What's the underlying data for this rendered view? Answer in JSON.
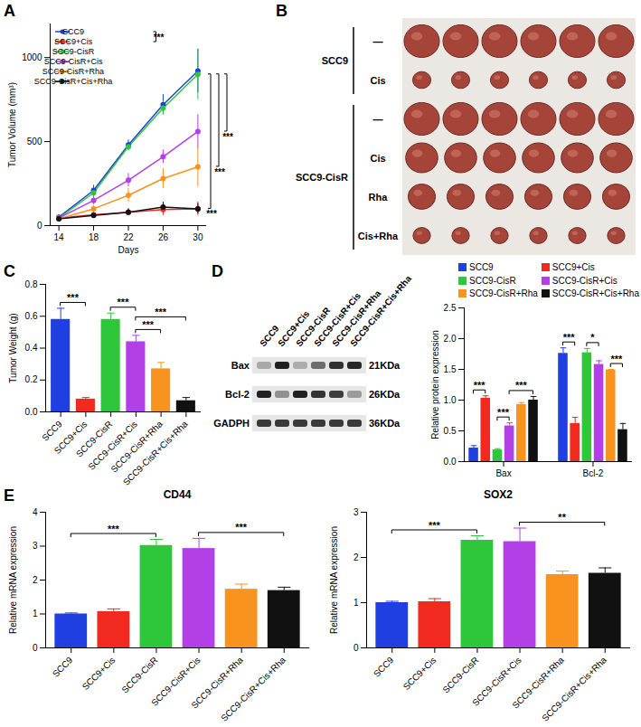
{
  "chart_data": [
    {
      "panel": "A",
      "type": "line",
      "x": [
        14,
        18,
        22,
        26,
        30
      ],
      "xlim": [
        13,
        31
      ],
      "xticks": [
        14,
        18,
        22,
        26,
        30
      ],
      "ylim": [
        0,
        1200
      ],
      "yticks": [
        0,
        500,
        1000
      ],
      "x_label": "Days",
      "y_label": "Tumor Volume (mm³)",
      "legend": "top-left",
      "marker": "circle",
      "series": [
        {
          "name": "SCC9",
          "color": "#1f3fe0",
          "values": [
            50,
            210,
            480,
            720,
            920
          ],
          "errors": [
            15,
            30,
            30,
            60,
            130
          ]
        },
        {
          "name": "SCC9+Cis",
          "color": "#f2291f",
          "values": [
            45,
            65,
            80,
            95,
            100
          ],
          "errors": [
            10,
            15,
            20,
            35,
            40
          ]
        },
        {
          "name": "SCC9-CisR",
          "color": "#2ec73c",
          "values": [
            45,
            195,
            470,
            700,
            900
          ],
          "errors": [
            15,
            25,
            25,
            40,
            150
          ]
        },
        {
          "name": "SCC9-CisR+Cis",
          "color": "#b33fe6",
          "values": [
            45,
            150,
            270,
            410,
            560
          ],
          "errors": [
            10,
            25,
            40,
            40,
            100
          ]
        },
        {
          "name": "SCC9-CisR+Rha",
          "color": "#f7931e",
          "values": [
            40,
            100,
            180,
            280,
            350
          ],
          "errors": [
            10,
            20,
            40,
            60,
            120
          ]
        },
        {
          "name": "SCC9-CisR+Cis+Rha",
          "color": "#111111",
          "values": [
            40,
            60,
            80,
            110,
            100
          ],
          "errors": [
            10,
            15,
            20,
            30,
            30
          ]
        }
      ],
      "significance": [
        {
          "groups": [
            "SCC9",
            "SCC9+Cis"
          ],
          "label": "***"
        },
        {
          "groups": [
            "SCC9-CisR",
            "SCC9-CisR+Cis"
          ],
          "label": "***"
        },
        {
          "groups": [
            "SCC9-CisR",
            "SCC9-CisR+Rha"
          ],
          "label": "***"
        },
        {
          "groups": [
            "SCC9-CisR",
            "SCC9-CisR+Cis+Rha"
          ],
          "label": "***"
        }
      ]
    },
    {
      "panel": "C",
      "type": "bar",
      "categories": [
        "SCC9",
        "SCC9+Cis",
        "SCC9-CisR",
        "SCC9-CisR+Cis",
        "SCC9-CisR+Rha",
        "SCC9-CisR+Cis+Rha"
      ],
      "values": [
        0.58,
        0.08,
        0.58,
        0.44,
        0.27,
        0.07
      ],
      "errors": [
        0.07,
        0.01,
        0.04,
        0.04,
        0.04,
        0.02
      ],
      "colors": [
        "#1f3fe0",
        "#f2291f",
        "#2ec73c",
        "#b33fe6",
        "#f7931e",
        "#111111"
      ],
      "ylim": [
        0,
        0.8
      ],
      "yticks": [
        {
          "value": 0,
          "label": "0.0"
        },
        0.2,
        0.4,
        0.6,
        0.8
      ],
      "y_label": "Tumor Weight (g)",
      "significance": [
        {
          "groups": [
            "SCC9",
            "SCC9+Cis"
          ],
          "label": "***"
        },
        {
          "groups": [
            "SCC9-CisR",
            "SCC9-CisR+Cis"
          ],
          "label": "***"
        },
        {
          "groups": [
            "SCC9-CisR+Cis",
            "SCC9-CisR+Rha"
          ],
          "label": "***"
        },
        {
          "groups": [
            "SCC9-CisR+Cis",
            "SCC9-CisR+Cis+Rha"
          ],
          "label": "***"
        }
      ]
    },
    {
      "panel": "D",
      "type": "bar",
      "categories": [
        "Bax",
        "Bcl-2"
      ],
      "legend": "top",
      "ylim": [
        0,
        2.5
      ],
      "yticks": [
        {
          "value": 0,
          "label": "0.0"
        },
        0.5,
        {
          "value": 1,
          "label": "1.0"
        },
        1.5,
        {
          "value": 2,
          "label": "2.0"
        },
        2.5
      ],
      "y_label": "Relative protein expression",
      "series": [
        {
          "name": "SCC9",
          "color": "#1f3fe0",
          "values": [
            0.22,
            1.76
          ],
          "errors": [
            0.04,
            0.09
          ]
        },
        {
          "name": "SCC9+Cis",
          "color": "#f2291f",
          "values": [
            1.03,
            0.62
          ],
          "errors": [
            0.04,
            0.1
          ]
        },
        {
          "name": "SCC9-CisR",
          "color": "#2ec73c",
          "values": [
            0.19,
            1.77
          ],
          "errors": [
            0.02,
            0.07
          ]
        },
        {
          "name": "SCC9-CisR+Cis",
          "color": "#b33fe6",
          "values": [
            0.58,
            1.58
          ],
          "errors": [
            0.05,
            0.06
          ]
        },
        {
          "name": "SCC9-CisR+Rha",
          "color": "#f7931e",
          "values": [
            0.93,
            1.49
          ],
          "errors": [
            0.03,
            0.01
          ]
        },
        {
          "name": "SCC9-CisR+Cis+Rha",
          "color": "#111111",
          "values": [
            1.0,
            0.52
          ],
          "errors": [
            0.06,
            0.1
          ]
        }
      ],
      "significance": [
        {
          "category": "Bax",
          "groups": [
            "SCC9",
            "SCC9+Cis"
          ],
          "label": "***"
        },
        {
          "category": "Bax",
          "groups": [
            "SCC9-CisR",
            "SCC9-CisR+Cis"
          ],
          "label": "***"
        },
        {
          "category": "Bax",
          "groups": [
            "SCC9-CisR+Cis",
            "SCC9-CisR+Cis+Rha"
          ],
          "label": "***"
        },
        {
          "category": "Bcl-2",
          "groups": [
            "SCC9",
            "SCC9+Cis"
          ],
          "label": "***"
        },
        {
          "category": "Bcl-2",
          "groups": [
            "SCC9-CisR",
            "SCC9-CisR+Cis"
          ],
          "label": "*"
        },
        {
          "category": "Bcl-2",
          "groups": [
            "SCC9-CisR+Rha",
            "SCC9-CisR+Cis+Rha"
          ],
          "label": "***"
        }
      ]
    },
    {
      "panel": "E",
      "type": "bar",
      "title": "CD44",
      "categories": [
        "SCC9",
        "SCC9+Cis",
        "SCC9-CisR",
        "SCC9-CisR+Cis",
        "SCC9-CisR+Rha",
        "SCC9-CisR+Cis+Rha"
      ],
      "values": [
        1.0,
        1.07,
        3.02,
        2.93,
        1.73,
        1.69
      ],
      "errors": [
        0.03,
        0.08,
        0.18,
        0.3,
        0.15,
        0.1
      ],
      "colors": [
        "#1f3fe0",
        "#f2291f",
        "#2ec73c",
        "#b33fe6",
        "#f7931e",
        "#111111"
      ],
      "ylim": [
        0,
        4
      ],
      "yticks": [
        0,
        1,
        2,
        3,
        4
      ],
      "y_label": "Relative mRNA expression",
      "significance": [
        {
          "groups": [
            "SCC9",
            "SCC9-CisR"
          ],
          "label": "***"
        },
        {
          "groups": [
            "SCC9-CisR+Cis",
            "SCC9-CisR+Cis+Rha"
          ],
          "label": "***"
        }
      ]
    },
    {
      "panel": "E",
      "type": "bar",
      "title": "SOX2",
      "categories": [
        "SCC9",
        "SCC9+Cis",
        "SCC9-CisR",
        "SCC9-CisR+Cis",
        "SCC9-CisR+Rha",
        "SCC9-CisR+Cis+Rha"
      ],
      "values": [
        1.0,
        1.02,
        2.38,
        2.35,
        1.62,
        1.65
      ],
      "errors": [
        0.03,
        0.07,
        0.1,
        0.3,
        0.08,
        0.12
      ],
      "colors": [
        "#1f3fe0",
        "#f2291f",
        "#2ec73c",
        "#b33fe6",
        "#f7931e",
        "#111111"
      ],
      "ylim": [
        0,
        3
      ],
      "yticks": [
        0,
        1,
        2,
        3
      ],
      "y_label": "Relative mRNA expression",
      "significance": [
        {
          "groups": [
            "SCC9",
            "SCC9-CisR"
          ],
          "label": "***"
        },
        {
          "groups": [
            "SCC9-CisR+Cis",
            "SCC9-CisR+Cis+Rha"
          ],
          "label": "**"
        }
      ]
    }
  ],
  "photo": {
    "panel": "B",
    "groups": [
      {
        "label": "SCC9",
        "rows": [
          "—",
          "Cis"
        ]
      },
      {
        "label": "SCC9-CisR",
        "rows": [
          "—",
          "Cis",
          "Rha",
          "Cis+Rha"
        ]
      }
    ],
    "tumors_per_row": 6
  },
  "blot": {
    "panel": "D",
    "lanes": [
      "SCC9",
      "SCC9+Cis",
      "SCC9-CisR",
      "SCC9-CisR+Cis",
      "SCC9-CisR+Rha",
      "SCC9-CisR+Cis+Rha"
    ],
    "rows": [
      {
        "protein": "Bax",
        "size": "21KDa"
      },
      {
        "protein": "Bcl-2",
        "size": "26KDa"
      },
      {
        "protein": "GADPH",
        "size": "36KDa"
      }
    ]
  }
}
